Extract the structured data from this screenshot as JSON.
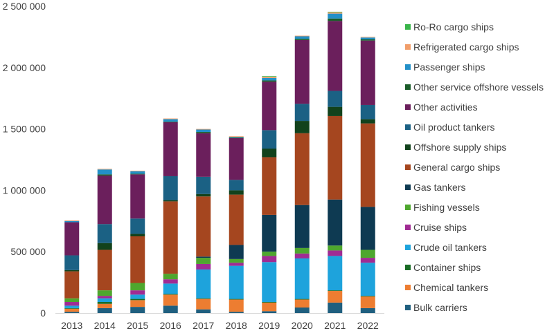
{
  "chart_data": {
    "type": "bar",
    "stacked": true,
    "categories": [
      "2013",
      "2014",
      "2015",
      "2016",
      "2017",
      "2018",
      "2019",
      "2020",
      "2021",
      "2022"
    ],
    "ylim": [
      0,
      2500000
    ],
    "y_ticks": [
      0,
      500000,
      1000000,
      1500000,
      2000000,
      2500000
    ],
    "y_tick_labels": [
      "0",
      "500 000",
      "1 000 000",
      "1 500 000",
      "2 000 000",
      "2 500 000"
    ],
    "grid": false,
    "legend_position": "right",
    "series": [
      {
        "name": "Bulk carriers",
        "color": "#1f5f7f",
        "values": [
          10000,
          40000,
          50000,
          60000,
          30000,
          10000,
          15000,
          45000,
          85000,
          40000
        ]
      },
      {
        "name": "Chemical tankers",
        "color": "#ed7d31",
        "values": [
          25000,
          35000,
          55000,
          90000,
          85000,
          100000,
          70000,
          65000,
          95000,
          95000
        ]
      },
      {
        "name": "Container ships",
        "color": "#196b24",
        "values": [
          5000,
          15000,
          10000,
          5000,
          5000,
          5000,
          5000,
          5000,
          5000,
          5000
        ]
      },
      {
        "name": "Crude oil tankers",
        "color": "#1ea3dc",
        "values": [
          20000,
          30000,
          35000,
          85000,
          235000,
          270000,
          325000,
          330000,
          280000,
          270000
        ]
      },
      {
        "name": "Cruise ships",
        "color": "#a02b93",
        "values": [
          30000,
          20000,
          35000,
          35000,
          45000,
          25000,
          50000,
          40000,
          45000,
          40000
        ]
      },
      {
        "name": "Fishing vessels",
        "color": "#4ea72e",
        "values": [
          30000,
          45000,
          60000,
          45000,
          50000,
          30000,
          35000,
          45000,
          40000,
          65000
        ]
      },
      {
        "name": "Gas tankers",
        "color": "#0e3a52",
        "values": [
          0,
          0,
          0,
          0,
          10000,
          115000,
          300000,
          350000,
          375000,
          350000
        ]
      },
      {
        "name": "General cargo ships",
        "color": "#a5461f",
        "values": [
          220000,
          330000,
          380000,
          590000,
          490000,
          410000,
          470000,
          585000,
          680000,
          680000
        ]
      },
      {
        "name": "Offshore supply ships",
        "color": "#12421c",
        "values": [
          10000,
          55000,
          20000,
          10000,
          20000,
          35000,
          70000,
          100000,
          75000,
          35000
        ]
      },
      {
        "name": "Oil product tankers",
        "color": "#1b6184",
        "values": [
          120000,
          155000,
          125000,
          195000,
          140000,
          85000,
          150000,
          140000,
          130000,
          115000
        ]
      },
      {
        "name": "Other activities",
        "color": "#6b1f5c",
        "values": [
          270000,
          395000,
          360000,
          440000,
          355000,
          340000,
          395000,
          520000,
          570000,
          525000
        ]
      },
      {
        "name": "Other service offshore vessels",
        "color": "#1a5c2a",
        "values": [
          0,
          10000,
          5000,
          5000,
          10000,
          5000,
          10000,
          10000,
          20000,
          10000
        ]
      },
      {
        "name": "Passenger ships",
        "color": "#2390c8",
        "values": [
          10000,
          40000,
          20000,
          20000,
          20000,
          5000,
          20000,
          20000,
          40000,
          15000
        ]
      },
      {
        "name": "Refrigerated cargo ships",
        "color": "#f19e6a",
        "values": [
          5000,
          5000,
          5000,
          5000,
          5000,
          5000,
          10000,
          5000,
          10000,
          5000
        ]
      },
      {
        "name": "Ro-Ro cargo ships",
        "color": "#3ab54a",
        "values": [
          0,
          0,
          0,
          0,
          0,
          0,
          5000,
          0,
          5000,
          0
        ]
      }
    ]
  }
}
